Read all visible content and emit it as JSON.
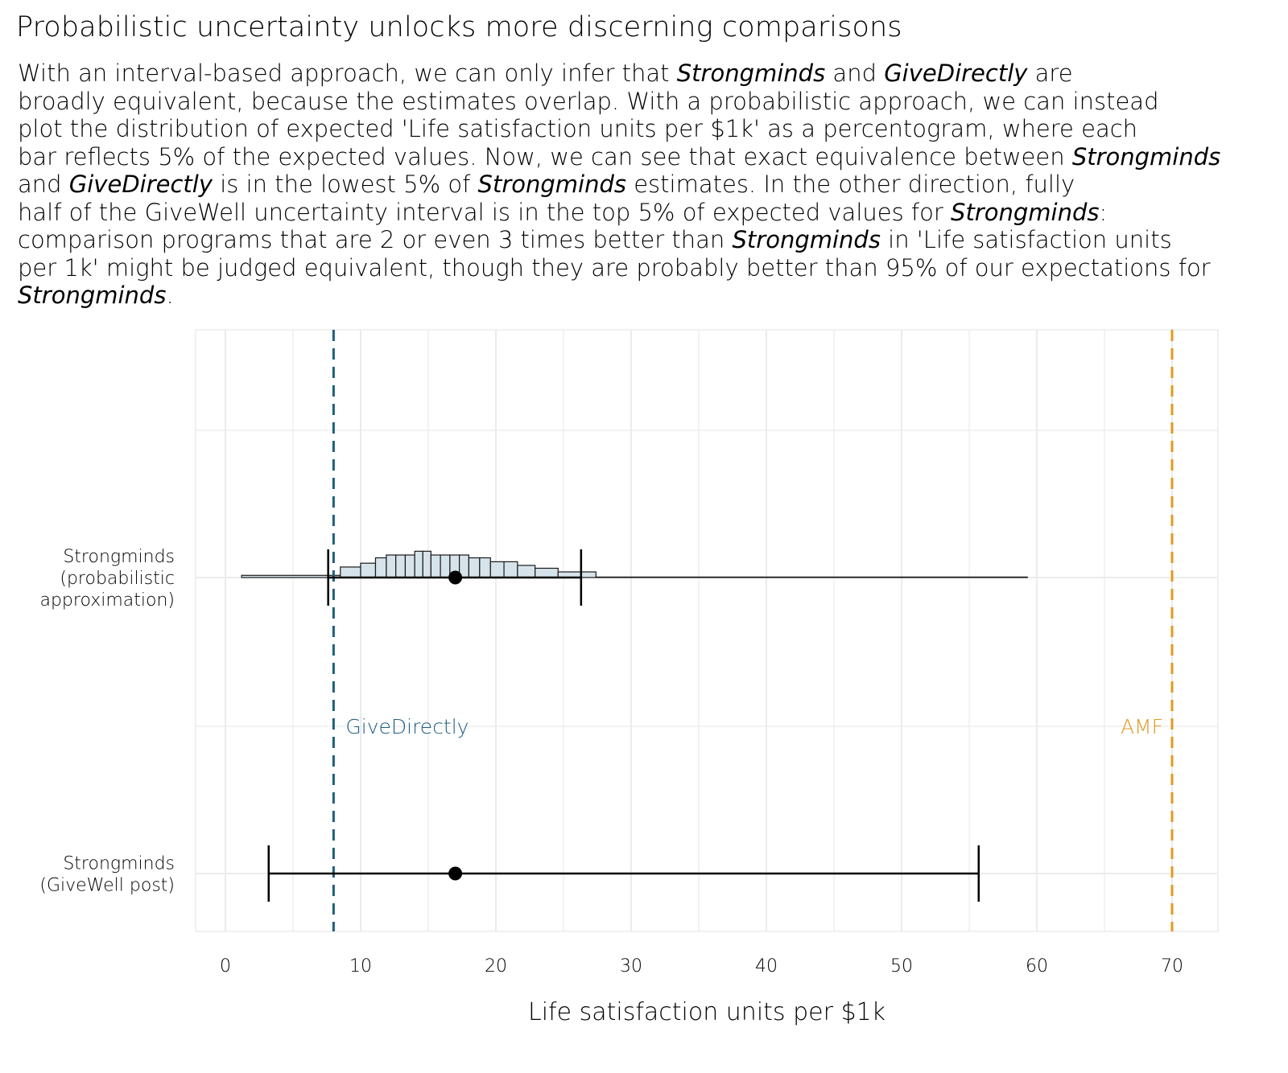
{
  "chart_data": {
    "type": "histogram+interval",
    "title": "Probabilistic uncertainty unlocks more discerning comparisons",
    "subtitle_lines": [
      [
        {
          "t": "With an interval-based approach, we can only infer that "
        },
        {
          "t": "Strongminds",
          "i": true
        },
        {
          "t": " and "
        },
        {
          "t": "GiveDirectly",
          "i": true
        },
        {
          "t": " are"
        }
      ],
      [
        {
          "t": "broadly equivalent, because the estimates overlap. With a probabilistic approach, we can instead"
        }
      ],
      [
        {
          "t": "plot the distribution of expected 'Life satisfaction units per $1k' as a percentogram, where each"
        }
      ],
      [
        {
          "t": "bar reflects 5% of the expected values. Now, we can see that exact equivalence between "
        },
        {
          "t": "Strongminds",
          "i": true
        }
      ],
      [
        {
          "t": "and "
        },
        {
          "t": "GiveDirectly",
          "i": true
        },
        {
          "t": " is in the lowest 5% of "
        },
        {
          "t": "Strongminds",
          "i": true
        },
        {
          "t": " estimates. In the other direction, fully"
        }
      ],
      [
        {
          "t": "half of the GiveWell uncertainty interval is in the top 5% of expected values for "
        },
        {
          "t": "Strongminds",
          "i": true
        },
        {
          "t": ":"
        }
      ],
      [
        {
          "t": "comparison programs that are 2 or even 3 times better than "
        },
        {
          "t": "Strongminds",
          "i": true
        },
        {
          "t": " in 'Life satisfaction units"
        }
      ],
      [
        {
          "t": "per 1k' might be judged equivalent, though they are probably better than 95% of our expectations for"
        }
      ],
      [
        {
          "t": "Strongminds",
          "i": true
        },
        {
          "t": "."
        }
      ]
    ],
    "xlabel": "Life satisfaction units per $1k",
    "xlim": [
      -2.2,
      73.5
    ],
    "x_ticks": [
      0,
      10,
      20,
      30,
      40,
      50,
      60,
      70
    ],
    "categories": [
      "Strongminds (probabilistic approximation)",
      "Strongminds (GiveWell post)"
    ],
    "category_labels": [
      [
        "Strongminds",
        "(probabilistic",
        "approximation)"
      ],
      [
        "Strongminds",
        "(GiveWell post)"
      ]
    ],
    "percentogram_bin_edges": [
      1.2,
      8.5,
      10.0,
      11.1,
      11.9,
      12.6,
      13.3,
      14.0,
      14.6,
      15.2,
      15.9,
      16.6,
      17.3,
      18.0,
      18.8,
      19.6,
      20.6,
      21.6,
      22.9,
      24.6,
      27.4,
      59.3
    ],
    "intervals": [
      {
        "category": "Strongminds (probabilistic approximation)",
        "low": 7.6,
        "point": 17.0,
        "high": 26.3
      },
      {
        "category": "Strongminds (GiveWell post)",
        "low": 3.2,
        "point": 17.0,
        "high": 55.7
      }
    ],
    "reference_lines": [
      {
        "name": "GiveDirectly",
        "x": 8.0,
        "color": "#1f5f82"
      },
      {
        "name": "AMF",
        "x": 70.0,
        "color": "#e09a20"
      }
    ],
    "colors": {
      "bar_fill": "#d6e3ea",
      "bar_stroke": "#1a1a1a",
      "grid": "#ebebeb"
    }
  }
}
